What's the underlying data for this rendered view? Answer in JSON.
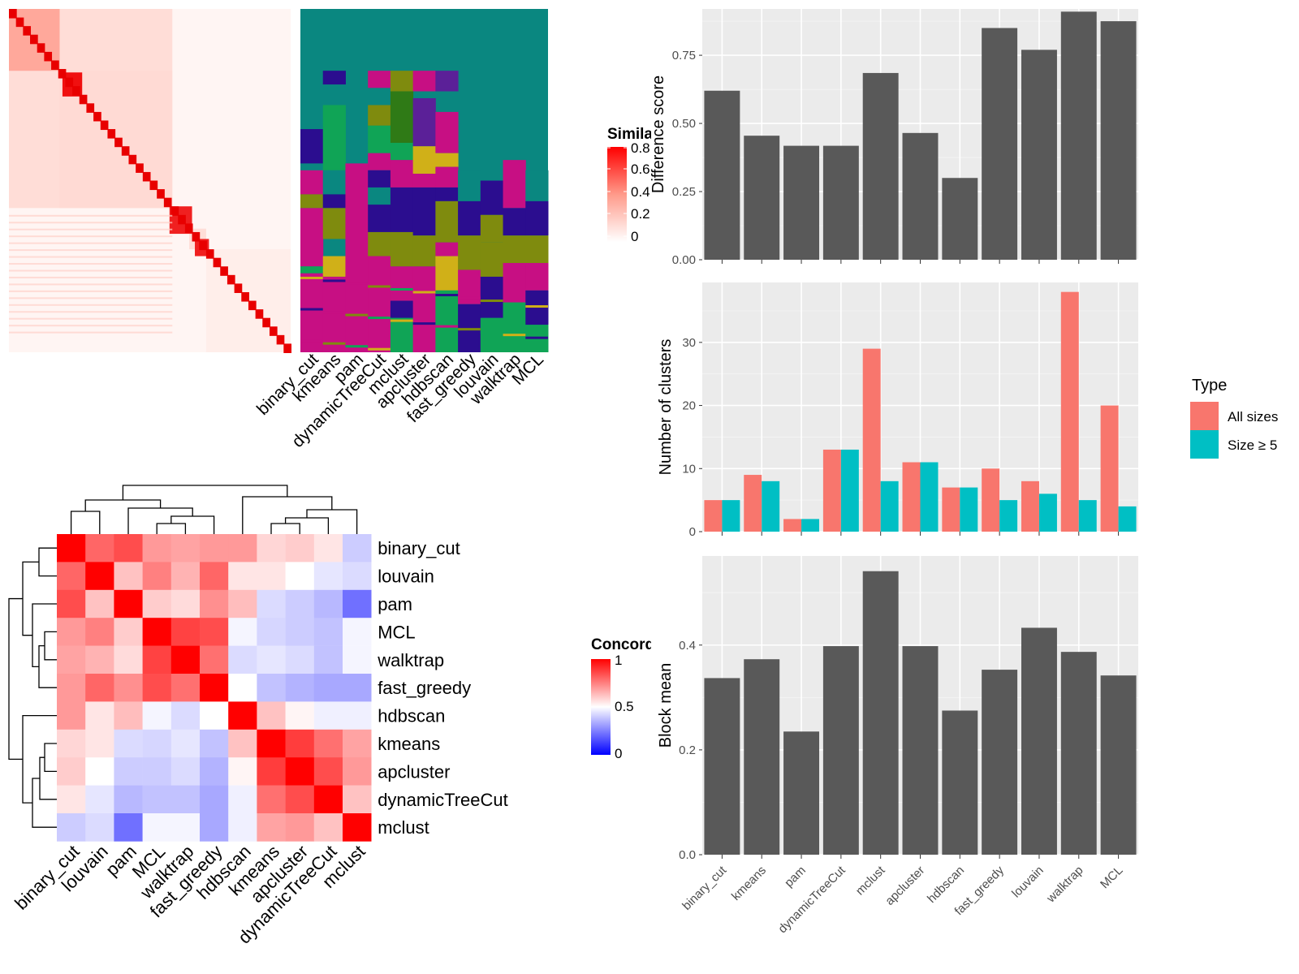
{
  "figure": {
    "methods_row": [
      "binary_cut",
      "kmeans",
      "pam",
      "dynamicTreeCut",
      "mclust",
      "apcluster",
      "hdbscan",
      "fast_greedy",
      "louvain",
      "walktrap",
      "MCL"
    ],
    "colors": {
      "teal": "#0a8780",
      "purple": "#2b0d8f",
      "magenta": "#c70f83",
      "olive": "#7f8b0e",
      "green": "#10a456",
      "gold": "#d0b018",
      "darkgreen": "#2f7a16",
      "violet": "#5b2098",
      "panel_bg": "#ebebeb",
      "bar_gray": "#595959",
      "salmon": "#f8766d",
      "cyan": "#00bfc4",
      "red": "#ff0000"
    }
  },
  "similarity_legend": {
    "title": "Similarity",
    "ticks": [
      "0.8",
      "0.6",
      "0.4",
      "0.2",
      "0"
    ]
  },
  "concordance_legend": {
    "title": "Concordance",
    "ticks": [
      "1",
      "0.5",
      "0"
    ]
  },
  "chart_data": [
    {
      "type": "bar",
      "ylabel": "Difference score",
      "ylim": [
        0,
        0.92
      ],
      "yticks": [
        "0.00",
        "0.25",
        "0.50",
        "0.75"
      ],
      "categories": [
        "binary_cut",
        "kmeans",
        "pam",
        "dynamicTreeCut",
        "mclust",
        "apcluster",
        "hdbscan",
        "fast_greedy",
        "louvain",
        "walktrap",
        "MCL"
      ],
      "values": [
        0.62,
        0.455,
        0.418,
        0.418,
        0.685,
        0.465,
        0.3,
        0.85,
        0.77,
        0.91,
        0.875
      ]
    },
    {
      "type": "bar",
      "ylabel": "Number of clusters",
      "ylim": [
        0,
        39.5
      ],
      "yticks": [
        "0",
        "10",
        "20",
        "30"
      ],
      "legend": {
        "title": "Type",
        "position": "right",
        "entries": [
          "All sizes",
          "Size ≥ 5"
        ]
      },
      "categories": [
        "binary_cut",
        "kmeans",
        "pam",
        "dynamicTreeCut",
        "mclust",
        "apcluster",
        "hdbscan",
        "fast_greedy",
        "louvain",
        "walktrap",
        "MCL"
      ],
      "series": [
        {
          "name": "All sizes",
          "values": [
            5,
            9,
            2,
            13,
            29,
            11,
            7,
            10,
            8,
            38,
            20
          ]
        },
        {
          "name": "Size ≥ 5",
          "values": [
            5,
            8,
            2,
            13,
            8,
            11,
            7,
            5,
            6,
            5,
            4
          ]
        }
      ]
    },
    {
      "type": "bar",
      "ylabel": "Block mean",
      "ylim": [
        0,
        0.57
      ],
      "yticks": [
        "0.0",
        "0.2",
        "0.4"
      ],
      "categories": [
        "binary_cut",
        "kmeans",
        "pam",
        "dynamicTreeCut",
        "mclust",
        "apcluster",
        "hdbscan",
        "fast_greedy",
        "louvain",
        "walktrap",
        "MCL"
      ],
      "values": [
        0.337,
        0.373,
        0.235,
        0.398,
        0.541,
        0.398,
        0.275,
        0.353,
        0.433,
        0.387,
        0.342
      ]
    },
    {
      "type": "heatmap",
      "legend_title": "Concordance",
      "rows": [
        "binary_cut",
        "louvain",
        "pam",
        "MCL",
        "walktrap",
        "fast_greedy",
        "hdbscan",
        "kmeans",
        "apcluster",
        "dynamicTreeCut",
        "mclust"
      ],
      "cols": [
        "binary_cut",
        "louvain",
        "pam",
        "MCL",
        "walktrap",
        "fast_greedy",
        "hdbscan",
        "kmeans",
        "apcluster",
        "dynamicTreeCut",
        "mclust"
      ],
      "values": [
        [
          1.0,
          0.8,
          0.85,
          0.7,
          0.68,
          0.7,
          0.7,
          0.58,
          0.6,
          0.55,
          0.4
        ],
        [
          0.8,
          1.0,
          0.62,
          0.75,
          0.65,
          0.8,
          0.55,
          0.55,
          0.5,
          0.45,
          0.43
        ],
        [
          0.85,
          0.62,
          1.0,
          0.6,
          0.57,
          0.72,
          0.63,
          0.43,
          0.4,
          0.36,
          0.22
        ],
        [
          0.7,
          0.75,
          0.6,
          1.0,
          0.87,
          0.85,
          0.48,
          0.42,
          0.4,
          0.38,
          0.48
        ],
        [
          0.68,
          0.65,
          0.57,
          0.87,
          1.0,
          0.78,
          0.43,
          0.45,
          0.43,
          0.38,
          0.48
        ],
        [
          0.7,
          0.8,
          0.72,
          0.85,
          0.78,
          1.0,
          0.5,
          0.38,
          0.35,
          0.33,
          0.33
        ],
        [
          0.7,
          0.55,
          0.63,
          0.48,
          0.43,
          0.5,
          1.0,
          0.62,
          0.52,
          0.47,
          0.47
        ],
        [
          0.58,
          0.55,
          0.43,
          0.42,
          0.45,
          0.38,
          0.62,
          1.0,
          0.88,
          0.78,
          0.68
        ],
        [
          0.6,
          0.5,
          0.4,
          0.4,
          0.43,
          0.35,
          0.52,
          0.88,
          1.0,
          0.85,
          0.7
        ],
        [
          0.55,
          0.45,
          0.36,
          0.38,
          0.38,
          0.33,
          0.47,
          0.78,
          0.85,
          1.0,
          0.62
        ],
        [
          0.4,
          0.43,
          0.22,
          0.48,
          0.48,
          0.33,
          0.47,
          0.68,
          0.7,
          0.62,
          1.0
        ]
      ]
    }
  ]
}
